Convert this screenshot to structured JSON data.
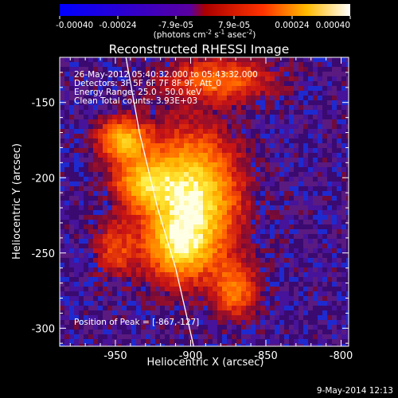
{
  "colorbar": {
    "tick_labels": [
      "-0.00040",
      "-0.00024",
      "-7.9e-05",
      "7.9e-05",
      "0.00024",
      "0.00040"
    ],
    "unit_label": "(photons cm",
    "unit_exp1": "-2",
    "unit_mid": " s",
    "unit_exp2": "-1",
    "unit_tail": " asec",
    "unit_exp3": "-2",
    "unit_close": ")",
    "range": [
      -0.0004,
      0.0004
    ],
    "colors": [
      "#0000ff",
      "#ff0000",
      "#ffff00",
      "#ffffff"
    ]
  },
  "chart_data": {
    "type": "heatmap",
    "title": "Reconstructed RHESSI Image",
    "xlabel": "Heliocentric X (arcsec)",
    "ylabel": "Heliocentric Y (arcsec)",
    "xlim": [
      -987,
      -795
    ],
    "ylim": [
      -312,
      -120
    ],
    "x_ticks": [
      -950,
      -900,
      -850,
      -800
    ],
    "y_ticks": [
      -150,
      -200,
      -250,
      -300
    ],
    "x_tick_labels": [
      "-950",
      "-900",
      "-850",
      "-800"
    ],
    "y_tick_labels": [
      "-150",
      "-200",
      "-250",
      "-300"
    ],
    "annotations": {
      "time": "26-May-2012 05:40:32.000 to 05:43:32.000",
      "detectors": "Detectors: 3F 5F 6F 7F 8F 9F, Att_0",
      "energy": "Energy Range: 25.0 - 50.0 keV",
      "method": "Clean     Total counts: 3.93E+03",
      "peak": "Position of Peak = [-867,-127]"
    },
    "peak": [
      -867,
      -127
    ],
    "limb": [
      [
        -943,
        -120
      ],
      [
        -934,
        -170
      ],
      [
        -922,
        -220
      ],
      [
        -910,
        -260
      ],
      [
        -898,
        -312
      ]
    ],
    "sources": [
      {
        "x": -900,
        "y": -215,
        "rx": 30,
        "ry": 42,
        "amp": 1.0
      },
      {
        "x": -933,
        "y": -203,
        "rx": 18,
        "ry": 16,
        "amp": 0.55
      },
      {
        "x": -945,
        "y": -175,
        "rx": 16,
        "ry": 14,
        "amp": 0.7
      },
      {
        "x": -908,
        "y": -248,
        "rx": 20,
        "ry": 20,
        "amp": 0.45
      },
      {
        "x": -870,
        "y": -275,
        "rx": 14,
        "ry": 18,
        "amp": 0.5
      },
      {
        "x": -880,
        "y": -135,
        "rx": 35,
        "ry": 14,
        "amp": 0.5
      },
      {
        "x": -950,
        "y": -248,
        "rx": 14,
        "ry": 18,
        "amp": 0.35
      }
    ]
  },
  "footer": {
    "timestamp": "9-May-2014 12:13"
  }
}
